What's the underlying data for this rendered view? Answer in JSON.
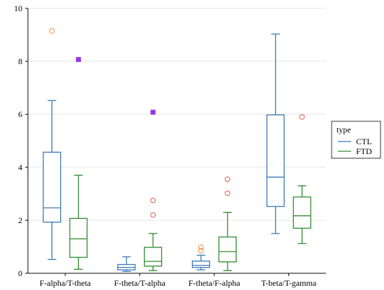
{
  "chart_data": {
    "type": "box",
    "title": "",
    "xlabel": "",
    "ylabel": "",
    "ylim": [
      0,
      10
    ],
    "yticks": [
      0,
      2,
      4,
      6,
      8,
      10
    ],
    "ytick_labels": [
      "0",
      "2",
      "4",
      "6",
      "8",
      "10"
    ],
    "grid": "horizontal",
    "legend": {
      "title": "type",
      "placement": "right",
      "entries": [
        "CTL",
        "FTD"
      ]
    },
    "categories": [
      "F-alpha/T-theta",
      "F-theta/T-alpha",
      "F-theta/F-alpha",
      "T-beta/T-gamma"
    ],
    "series": [
      {
        "name": "CTL",
        "color": "#3a78b5",
        "outlier_color": "#f08c3c",
        "boxes": [
          {
            "min": 0.52,
            "q1": 1.93,
            "median": 2.47,
            "q3": 4.57,
            "max": 6.52,
            "outliers": [
              9.15
            ]
          },
          {
            "min": 0.07,
            "q1": 0.13,
            "median": 0.22,
            "q3": 0.33,
            "max": 0.62,
            "outliers": []
          },
          {
            "min": 0.13,
            "q1": 0.22,
            "median": 0.3,
            "q3": 0.46,
            "max": 0.68,
            "outliers": [
              0.85,
              0.98
            ]
          },
          {
            "min": 1.5,
            "q1": 2.52,
            "median": 3.63,
            "q3": 5.98,
            "max": 9.03,
            "outliers": []
          }
        ]
      },
      {
        "name": "FTD",
        "color": "#2e8b2e",
        "outlier_color": "#e05a4a",
        "boxes": [
          {
            "min": 0.15,
            "q1": 0.6,
            "median": 1.3,
            "q3": 2.07,
            "max": 3.7,
            "outliers": []
          },
          {
            "min": 0.1,
            "q1": 0.27,
            "median": 0.45,
            "q3": 0.98,
            "max": 1.5,
            "outliers": [
              2.2,
              2.75
            ]
          },
          {
            "min": 0.1,
            "q1": 0.43,
            "median": 0.82,
            "q3": 1.37,
            "max": 2.3,
            "outliers": [
              3.02,
              3.55
            ]
          },
          {
            "min": 1.12,
            "q1": 1.7,
            "median": 2.17,
            "q3": 2.88,
            "max": 3.3,
            "outliers": [
              5.9
            ]
          }
        ]
      }
    ],
    "extreme_markers": {
      "color": "#9b30e0",
      "points": [
        {
          "category": "F-alpha/T-theta",
          "value": 8.07
        },
        {
          "category": "F-theta/T-alpha",
          "value": 6.08
        }
      ]
    }
  }
}
